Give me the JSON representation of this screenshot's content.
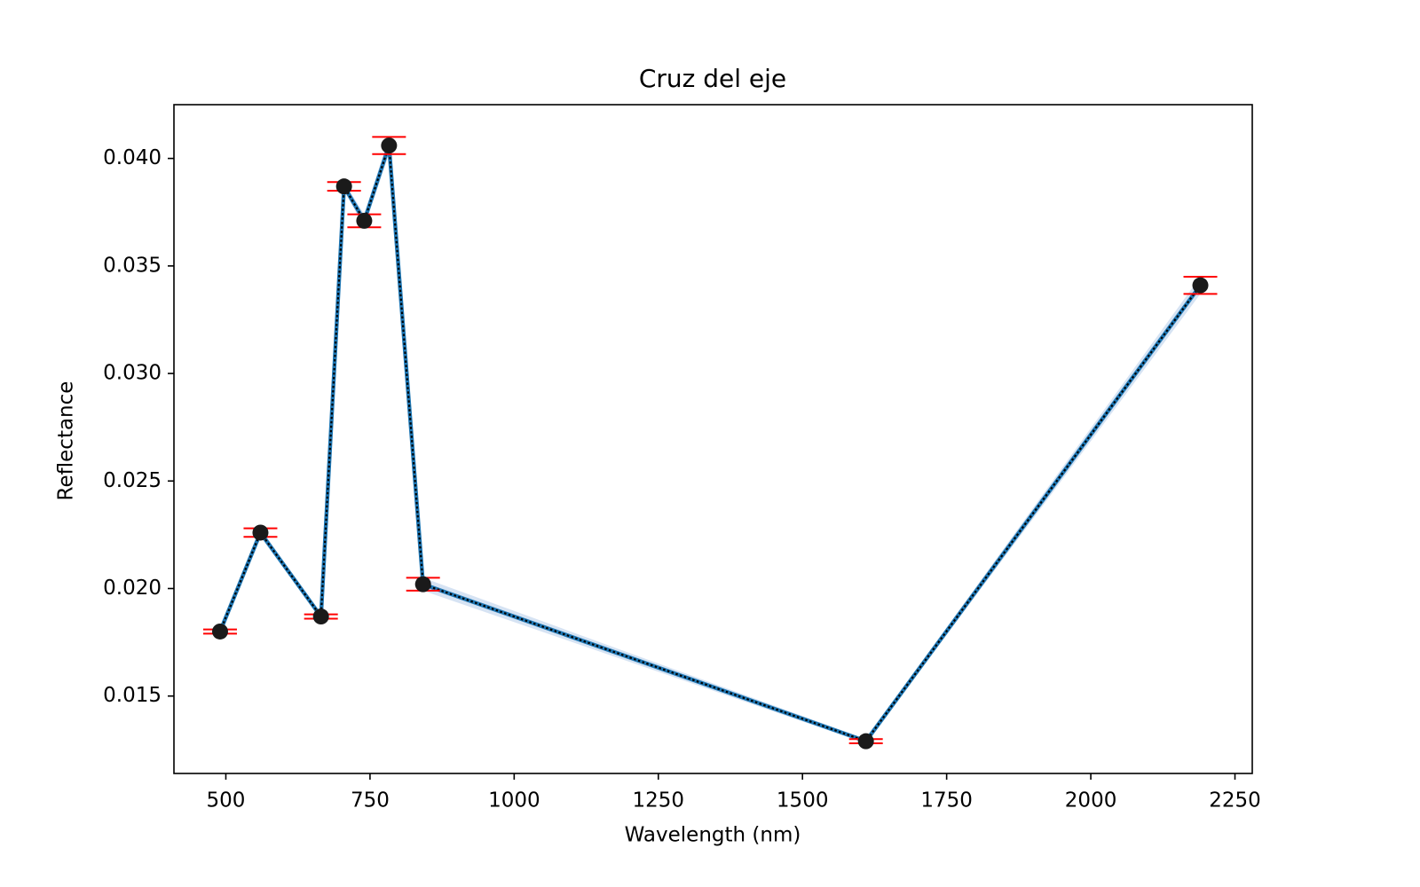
{
  "chart_data": {
    "type": "line",
    "title": "Cruz del eje",
    "xlabel": "Wavelength (nm)",
    "ylabel": "Reflectance",
    "xlim": [
      410,
      2280
    ],
    "ylim": [
      0.0114,
      0.0425
    ],
    "x_ticks": [
      500,
      750,
      1000,
      1250,
      1500,
      1750,
      2000,
      2250
    ],
    "x_tick_labels": [
      "500",
      "750",
      "1000",
      "1250",
      "1500",
      "1750",
      "2000",
      "2250"
    ],
    "y_ticks": [
      0.015,
      0.02,
      0.025,
      0.03,
      0.035,
      0.04
    ],
    "y_tick_labels": [
      "0.015",
      "0.020",
      "0.025",
      "0.030",
      "0.035",
      "0.040"
    ],
    "grid": false,
    "series": [
      {
        "x": [
          490,
          560,
          665,
          705,
          740,
          783,
          842,
          1610,
          2190
        ],
        "y": [
          0.018,
          0.0226,
          0.0187,
          0.0387,
          0.0371,
          0.0406,
          0.0202,
          0.0129,
          0.0341
        ],
        "error": [
          0.0001,
          0.0002,
          0.0001,
          0.0002,
          0.0003,
          0.0004,
          0.0003,
          0.0001,
          0.0004
        ]
      }
    ],
    "colors": {
      "line": "#1f77b4",
      "dotted_overlay": "#000000",
      "marker": "#1a1a1a",
      "error_bar": "#ff0000",
      "band": "#aec7e8"
    }
  }
}
